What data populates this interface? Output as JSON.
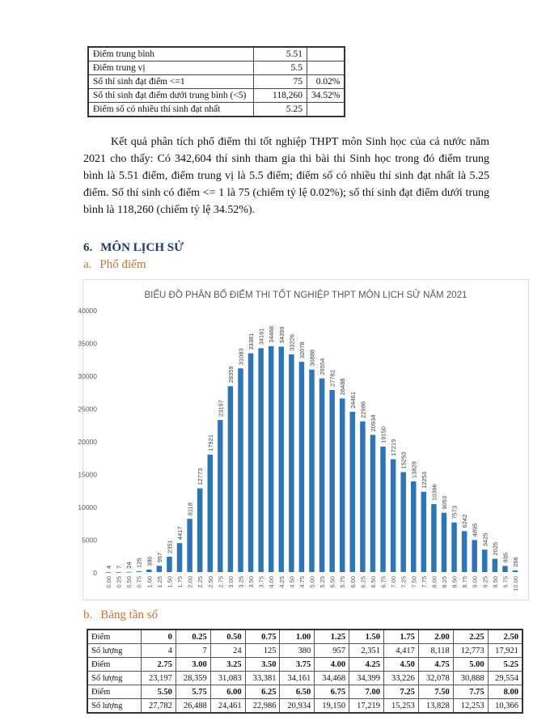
{
  "stats_table": [
    {
      "label": "Điểm trung bình",
      "value": "5.51",
      "pct": ""
    },
    {
      "label": "Điểm trung vị",
      "value": "5.5",
      "pct": ""
    },
    {
      "label": "Số thí sinh đạt điểm <=1",
      "value": "75",
      "pct": "0.02%"
    },
    {
      "label": "Số thí sinh đạt điểm dưới trung bình (<5)",
      "value": "118,260",
      "pct": "34.52%"
    },
    {
      "label": "Điểm số có nhiều thí sinh đạt nhất",
      "value": "5.25",
      "pct": ""
    }
  ],
  "paragraph": "Kết quả phân tích phổ điểm thi tốt nghiệp THPT môn Sinh học của cả nước năm 2021 cho thấy: Có 342,604 thí sinh tham gia thi bài thi Sinh học trong đó điểm trung bình là 5.51 điểm, điểm trung vị là 5.5 điểm; điểm số có nhiều thí sinh đạt nhất là 5.25 điểm. Số thí sinh có điểm <= 1 là 75 (chiếm tỷ lệ 0.02%); số thí sinh đạt điểm dưới trung bình là 118,260 (chiếm tỷ lệ 34.52%).",
  "section": {
    "number": "6.",
    "title": "MÔN LỊCH SỬ"
  },
  "sub_a": {
    "number": "a.",
    "title": "Phổ điểm"
  },
  "sub_b": {
    "number": "b.",
    "title": "Bảng tần số"
  },
  "chart_data": {
    "type": "bar",
    "title": "BIỂU ĐỒ PHÂN BỐ ĐIỂM THI TỐT NGHIỆP THPT MÔN LỊCH SỬ NĂM 2021",
    "xlabel": "",
    "ylabel": "",
    "ylim": [
      0,
      40000
    ],
    "yticks": [
      "0",
      "5000",
      "10000",
      "15000",
      "20000",
      "25000",
      "30000",
      "35000",
      "40000"
    ],
    "bar_color": "#2e75b6",
    "categories": [
      "0.00",
      "0.25",
      "0.50",
      "0.75",
      "1.00",
      "1.25",
      "1.50",
      "1.75",
      "2.00",
      "2.25",
      "2.50",
      "2.75",
      "3.00",
      "3.25",
      "3.50",
      "3.75",
      "4.00",
      "4.25",
      "4.50",
      "4.75",
      "5.00",
      "5.25",
      "5.50",
      "5.75",
      "6.00",
      "6.25",
      "6.50",
      "6.75",
      "7.00",
      "7.25",
      "7.50",
      "7.75",
      "8.00",
      "8.25",
      "8.50",
      "8.75",
      "9.00",
      "9.25",
      "9.50",
      "9.75",
      "10.00"
    ],
    "values": [
      4,
      7,
      24,
      125,
      380,
      957,
      2351,
      4417,
      8118,
      12773,
      17921,
      23197,
      28359,
      31083,
      33381,
      34161,
      34468,
      34399,
      33226,
      32078,
      30888,
      29554,
      27782,
      26488,
      24461,
      22986,
      20934,
      19150,
      17219,
      15253,
      13828,
      12253,
      10366,
      9053,
      7573,
      6242,
      4895,
      3425,
      2025,
      935,
      266
    ]
  },
  "freq_table": {
    "point_label": "Điểm",
    "count_label": "Số lượng",
    "blocks": [
      {
        "points": [
          "0",
          "0.25",
          "0.50",
          "0.75",
          "1.00",
          "1.25",
          "1.50",
          "1.75",
          "2.00",
          "2.25",
          "2.50"
        ],
        "counts": [
          "4",
          "7",
          "24",
          "125",
          "380",
          "957",
          "2,351",
          "4,417",
          "8,118",
          "12,773",
          "17,921"
        ]
      },
      {
        "points": [
          "2.75",
          "3.00",
          "3.25",
          "3.50",
          "3.75",
          "4.00",
          "4.25",
          "4.50",
          "4.75",
          "5.00",
          "5.25"
        ],
        "counts": [
          "23,197",
          "28,359",
          "31,083",
          "33,381",
          "34,161",
          "34,468",
          "34,399",
          "33,226",
          "32,078",
          "30,888",
          "29,554"
        ]
      },
      {
        "points": [
          "5.50",
          "5.75",
          "6.00",
          "6.25",
          "6.50",
          "6.75",
          "7.00",
          "7.25",
          "7.50",
          "7.75",
          "8.00"
        ],
        "counts": [
          "27,782",
          "26,488",
          "24,461",
          "22,986",
          "20,934",
          "19,150",
          "17,219",
          "15,253",
          "13,828",
          "12,253",
          "10,366"
        ]
      }
    ]
  }
}
